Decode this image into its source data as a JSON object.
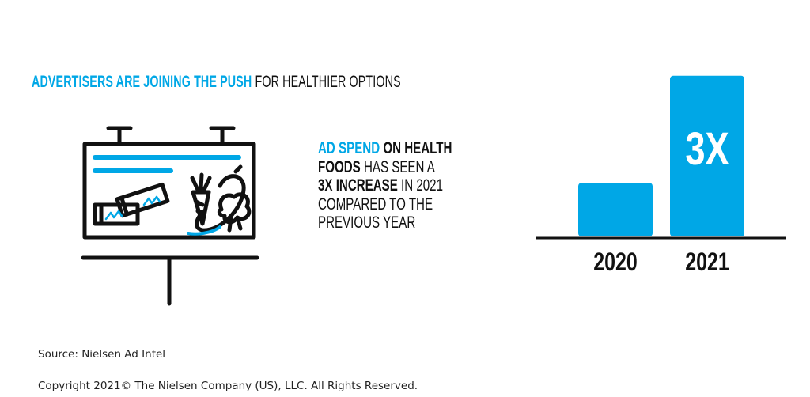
{
  "headline": {
    "highlight": "ADVERTISERS ARE JOINING THE PUSH",
    "rest": " FOR HEALTHIER OPTIONS"
  },
  "stat": {
    "line1_blue": "AD SPEND",
    "line1_bold": " ON HEALTH",
    "line2_bold": "FOODS",
    "line2_rest": " HAS SEEN A",
    "line3_bold": "3X INCREASE",
    "line3_rest": " IN 2021",
    "line4": "COMPARED TO THE",
    "line5": "PREVIOUS YEAR"
  },
  "chart_data": {
    "type": "bar",
    "categories": [
      "2020",
      "2021"
    ],
    "values": [
      1,
      3
    ],
    "data_labels": [
      "",
      "3X"
    ],
    "title": "",
    "xlabel": "",
    "ylabel": "",
    "ylim": [
      0,
      3.1
    ],
    "grid": false,
    "bar_color": "#00a7e6"
  },
  "footer": {
    "source": "Source: Nielsen Ad Intel",
    "copyright": "Copyright 2021© The Nielsen Company (US), LLC. All Rights Reserved."
  },
  "colors": {
    "accent": "#00a7e6",
    "text": "#111111"
  }
}
